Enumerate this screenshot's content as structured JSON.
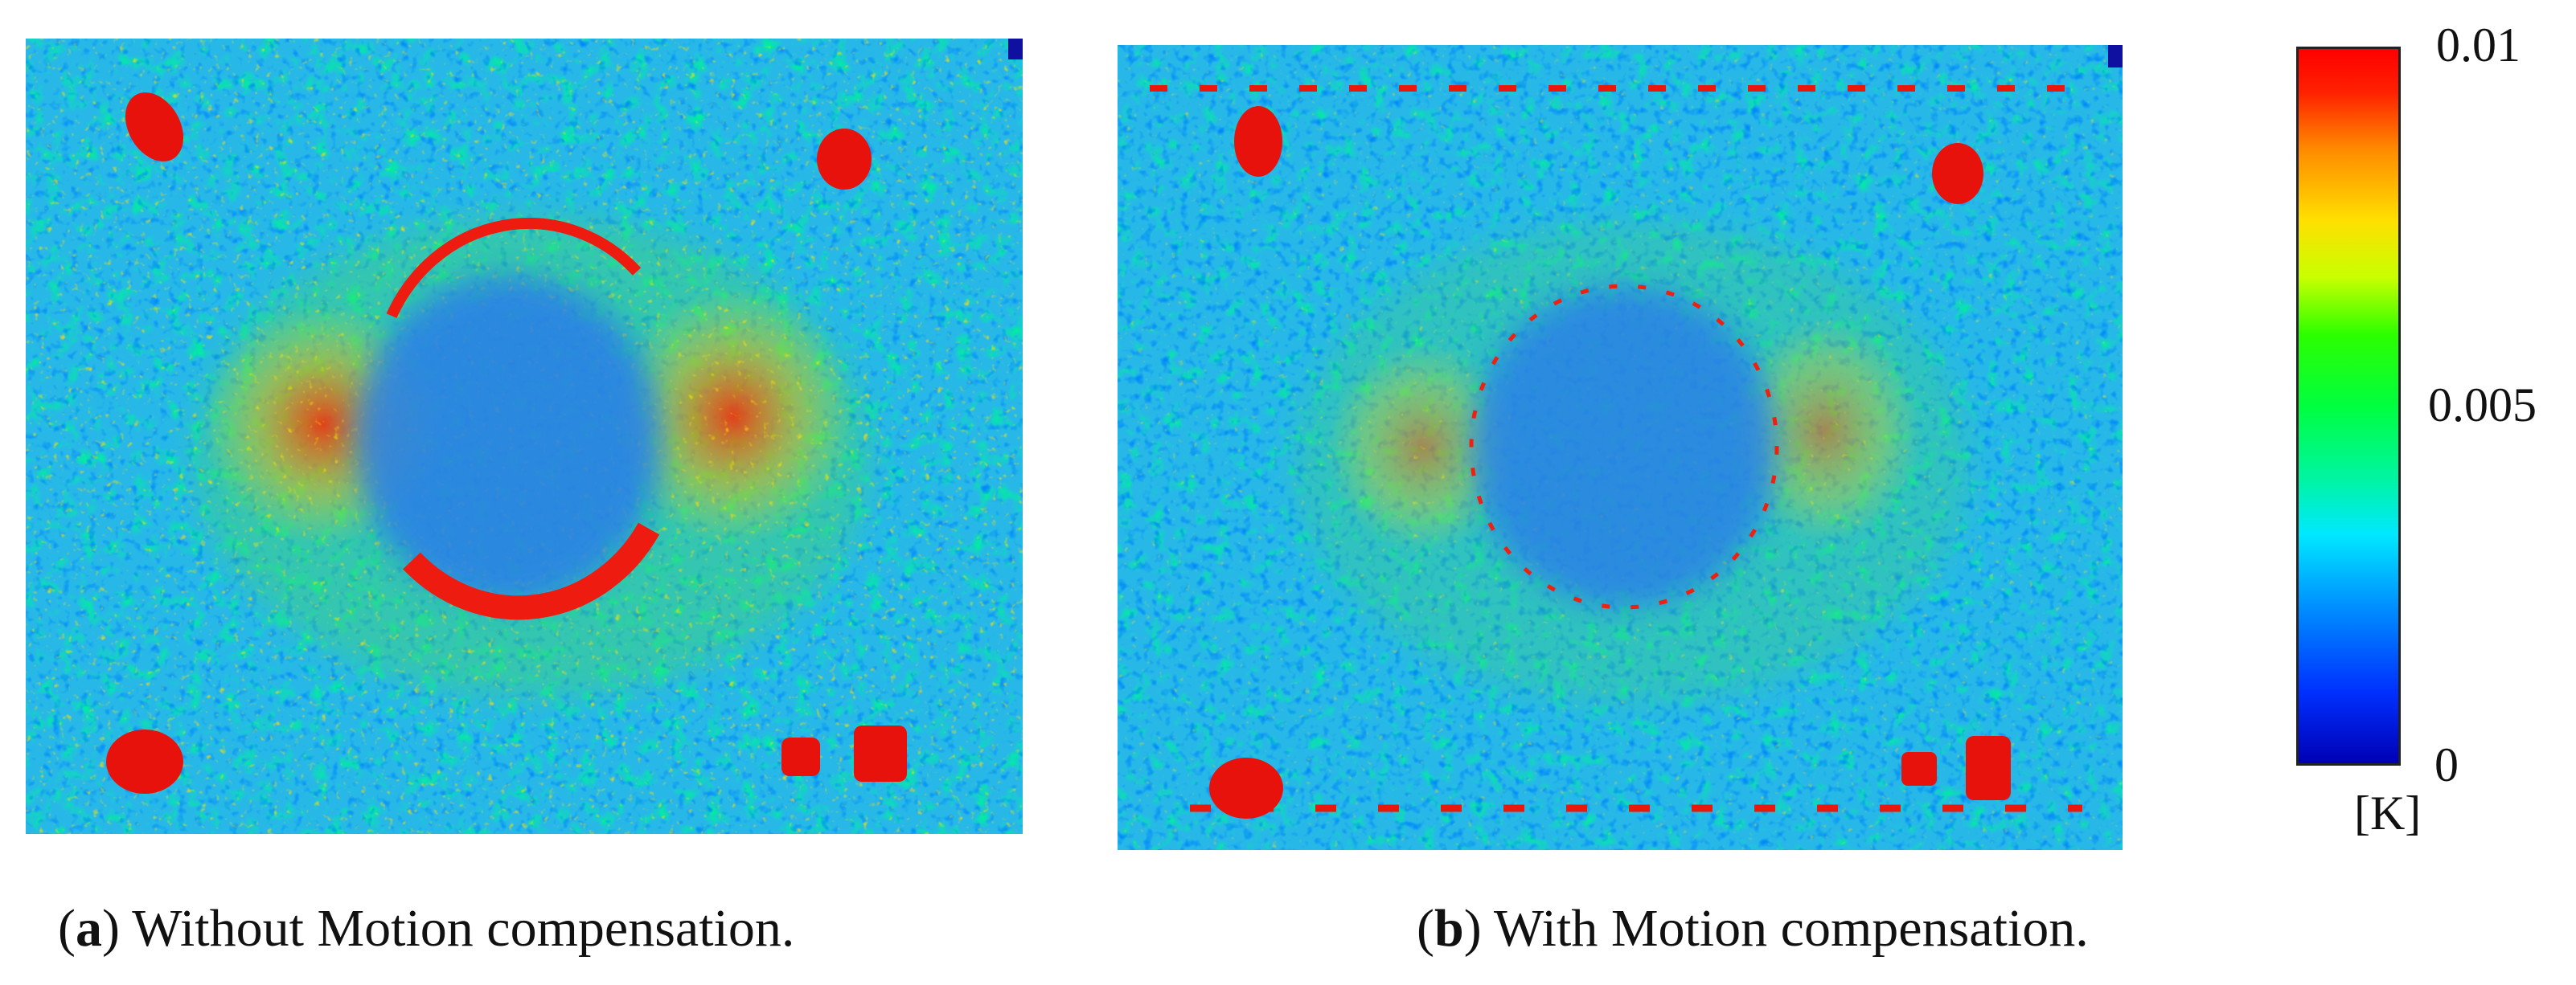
{
  "panels": [
    {
      "letter": "a",
      "caption": " Without Motion compensation."
    },
    {
      "letter": "b",
      "caption": " With Motion compensation."
    }
  ],
  "colorbar": {
    "max_label": "0.01",
    "mid_label": "0.005",
    "min_label": "0",
    "unit": "[K]"
  }
}
